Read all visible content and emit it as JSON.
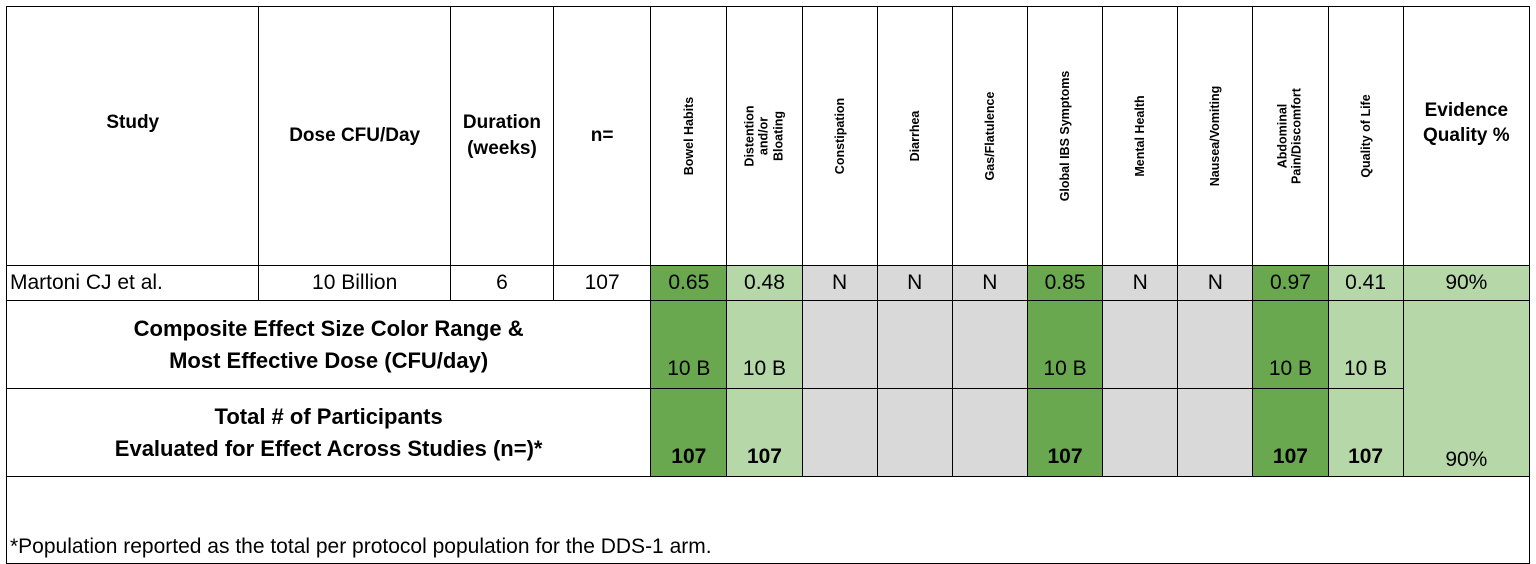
{
  "headers": {
    "study": "Study",
    "dose": "Dose CFU/Day",
    "duration": "Duration (weeks)",
    "n": "n=",
    "bowel_habits": "Bowel Habits",
    "distention": "Distention and/or Bloating",
    "constipation": "Constipation",
    "diarrhea": "Diarrhea",
    "gas": "Gas/Flatulence",
    "global_ibs": "Global IBS Symptoms",
    "mental_health": "Mental Health",
    "nausea": "Nausea/Vomiting",
    "abdominal": "Abdominal Pain/Discomfort",
    "quality_of_life": "Quality of Life",
    "evidence": "Evidence Quality %"
  },
  "study_row": {
    "study": "Martoni CJ et al.",
    "dose": "10 Billion",
    "duration": "6",
    "n": "107",
    "bowel_habits": "0.65",
    "distention": "0.48",
    "constipation": "N",
    "diarrhea": "N",
    "gas": "N",
    "global_ibs": "0.85",
    "mental_health": "N",
    "nausea": "N",
    "abdominal": "0.97",
    "quality_of_life": "0.41",
    "evidence": "90%"
  },
  "composite_row": {
    "label_line1": "Composite Effect Size Color Range &",
    "label_line2": "Most Effective Dose (CFU/day)",
    "bowel_habits": "10 B",
    "distention": "10 B",
    "global_ibs": "10 B",
    "abdominal": "10 B",
    "quality_of_life": "10 B"
  },
  "participants_row": {
    "label_line1": "Total # of Participants",
    "label_line2": "Evaluated for Effect Across Studies (n=)*",
    "bowel_habits": "107",
    "distention": "107",
    "global_ibs": "107",
    "abdominal": "107",
    "quality_of_life": "107",
    "evidence": "90%"
  },
  "footnote": "*Population reported as the total per protocol population for the DDS-1 arm.",
  "colors": {
    "dark_green": "#6aa84f",
    "light_green": "#b6d7a8",
    "gray": "#d9d9d9"
  }
}
